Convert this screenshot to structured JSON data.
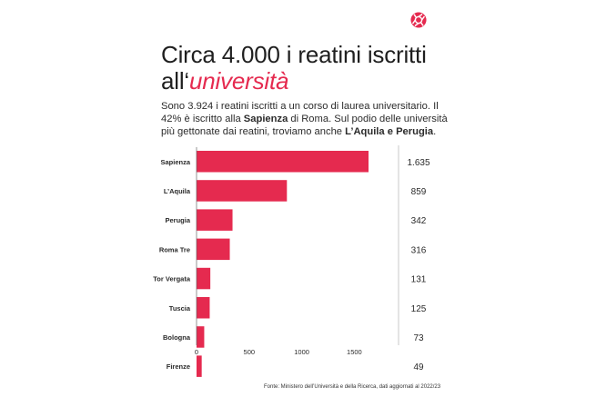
{
  "title": {
    "line1": "Circa 4.000 i reatini iscritti",
    "line2_prefix": "all‘",
    "line2_accent": "università"
  },
  "subtitle": {
    "part1": "Sono 3.924 i reatini iscritti a un corso di laurea universitario. Il 42% è iscritto alla ",
    "bold1": "Sapienza",
    "part2": " di Roma. Sul podio delle università più gettonate dai reatini, troviamo anche ",
    "bold2": "L’Aquila e Perugia",
    "part3": "."
  },
  "source": "Fonte: Ministero dell’Università e della Ricerca, dati aggiornati al 2022/23",
  "colors": {
    "accent": "#e52a4f",
    "text": "#1f1f1f",
    "grid": "#bdbdbd"
  },
  "logo_icon": "aperture-icon",
  "chart_data": {
    "type": "bar",
    "orientation": "horizontal",
    "categories": [
      "Sapienza",
      "L’Aquila",
      "Perugia",
      "Roma Tre",
      "Tor Vergata",
      "Tuscia",
      "Bologna",
      "Firenze"
    ],
    "values": [
      1635,
      859,
      342,
      316,
      131,
      125,
      73,
      49
    ],
    "value_labels": [
      "1.635",
      "859",
      "342",
      "316",
      "131",
      "125",
      "73",
      "49"
    ],
    "xticks": [
      0,
      500,
      1000,
      1500
    ],
    "xlim": [
      0,
      1650
    ],
    "grid": false,
    "legend": "none"
  }
}
